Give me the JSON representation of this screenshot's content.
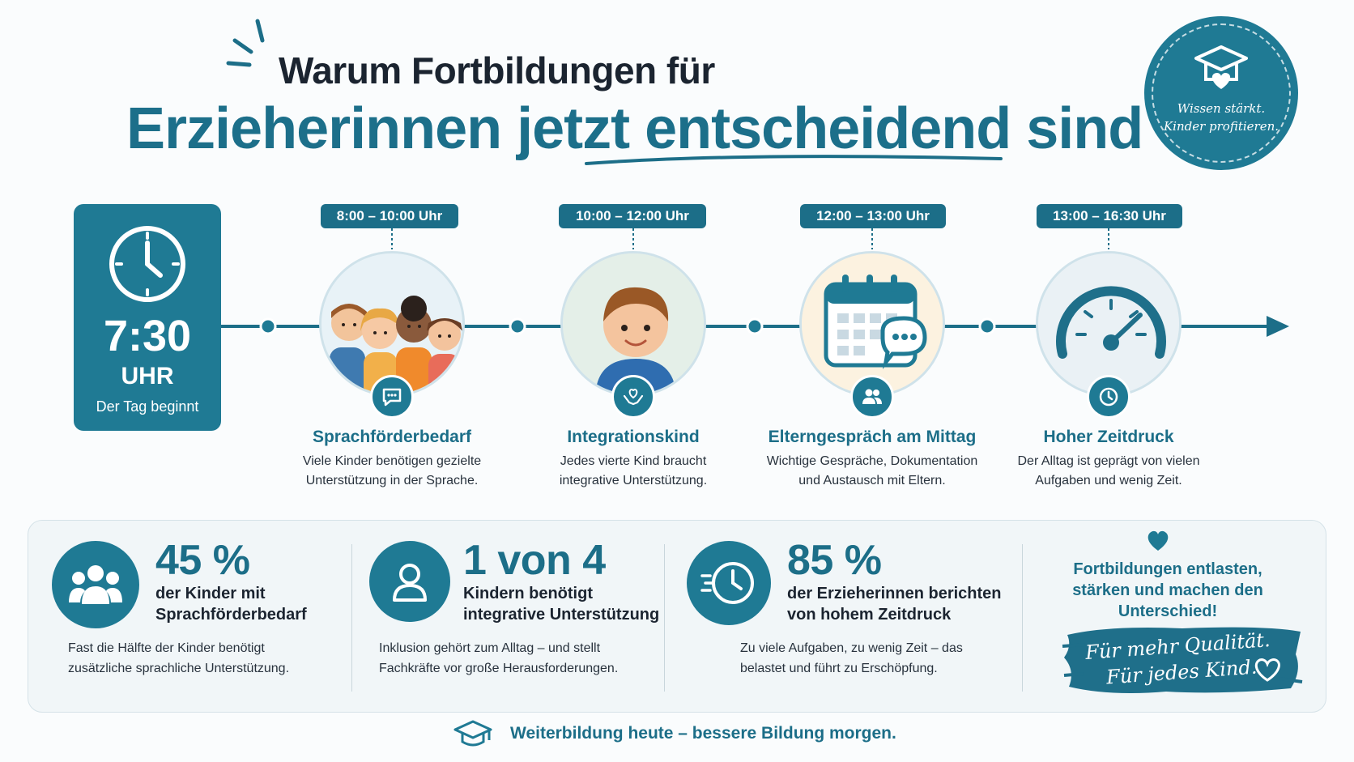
{
  "header": {
    "title_line1": "Warum Fortbildungen für",
    "title_line2": "Erzieherinnen jetzt entscheidend sind"
  },
  "badge": {
    "line1": "Wissen stärkt.",
    "line2": "Kinder profitieren.",
    "icon": "graduation-cap-heart-icon"
  },
  "start": {
    "time": "7:30",
    "unit": "UHR",
    "subtitle": "Der Tag beginnt",
    "icon": "clock-icon"
  },
  "steps": [
    {
      "time": "8:00 – 10:00 Uhr",
      "title": "Sprachförderbedarf",
      "desc1": "Viele Kinder benötigen gezielte",
      "desc2": "Unterstützung in der Sprache.",
      "icon": "speech-bubble-icon"
    },
    {
      "time": "10:00 – 12:00 Uhr",
      "title": "Integrationskind",
      "desc1": "Jedes vierte Kind braucht",
      "desc2": "integrative Unterstützung.",
      "icon": "heart-hands-icon"
    },
    {
      "time": "12:00 – 13:00 Uhr",
      "title": "Elterngespräch am Mittag",
      "desc1": "Wichtige Gespräche, Dokumentation",
      "desc2": "und Austausch mit Eltern.",
      "icon": "people-icon"
    },
    {
      "time": "13:00 – 16:30 Uhr",
      "title": "Hoher Zeitdruck",
      "desc1": "Der Alltag ist geprägt von vielen",
      "desc2": "Aufgaben und wenig Zeit.",
      "icon": "clock-icon"
    }
  ],
  "stats": [
    {
      "value": "45 %",
      "label1": "der Kinder mit",
      "label2": "Sprachförderbedarf",
      "desc1": "Fast die Hälfte der Kinder benötigt",
      "desc2": "zusätzliche sprachliche Unterstützung.",
      "icon": "group-icon"
    },
    {
      "value": "1 von 4",
      "label1": "Kindern benötigt",
      "label2": "integrative Unterstützung",
      "desc1": "Inklusion gehört zum Alltag – und stellt",
      "desc2": "Fachkräfte vor große Herausforderungen.",
      "icon": "person-icon"
    },
    {
      "value": "85 %",
      "label1": "der Erzieherinnen berichten",
      "label2": "von hohem Zeitdruck",
      "desc1": "Zu viele Aufgaben, zu wenig Zeit – das",
      "desc2": "belastet und führt zu Erschöpfung.",
      "icon": "fast-clock-icon"
    }
  ],
  "promo": {
    "line1": "Fortbildungen entlasten,",
    "line2": "stärken und machen den",
    "line3": "Unterschied!",
    "brush_line1": "Für mehr Qualität.",
    "brush_line2": "Für jedes Kind."
  },
  "footer": {
    "text": "Weiterbildung heute – bessere Bildung morgen.",
    "icon": "graduation-cap-icon"
  },
  "colors": {
    "primary": "#1f7a94",
    "title_dark": "#1b2430",
    "background": "#fafcfd"
  }
}
